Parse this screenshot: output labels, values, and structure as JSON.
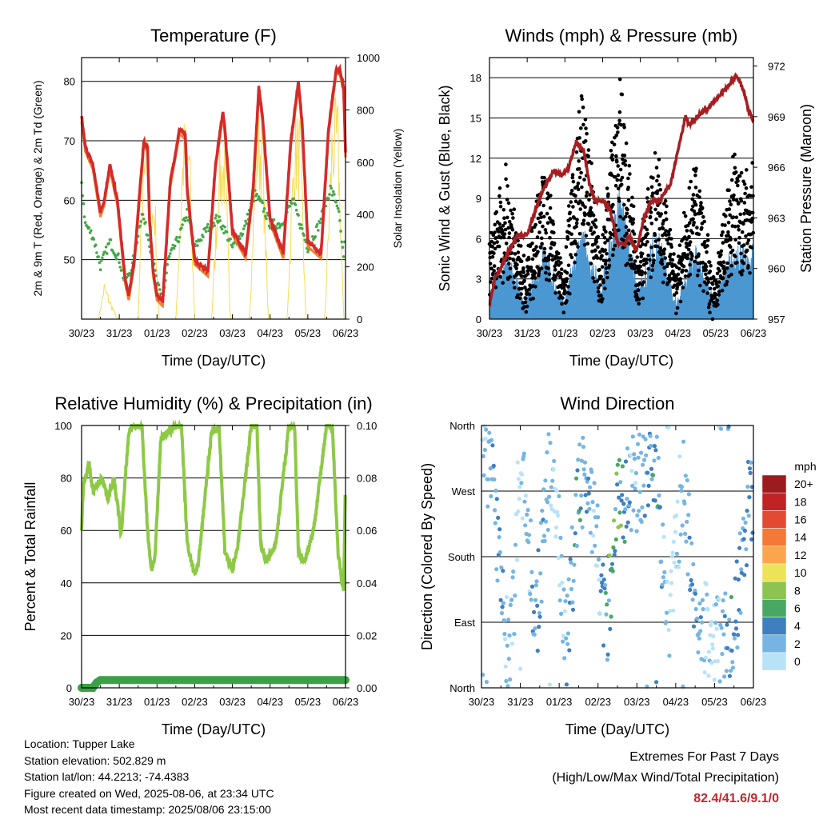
{
  "colors": {
    "red": "#d42a2a",
    "orange": "#f08030",
    "green_td": "#45a84a",
    "yellow": "#f5dc55",
    "black": "#000000",
    "blue": "#4b97d2",
    "maroon": "#a51e22",
    "rh_green": "#8ec946",
    "precip_green": "#3aa146"
  },
  "panels": {
    "temperature": {
      "title": "Temperature (F)",
      "ylabel": "2m & 9m T (Red, Orange) & 2m Td (Green)",
      "ylabel_right": "Solar Insolation (Yellow)",
      "xlabel": "Time (Day/UTC)"
    },
    "winds": {
      "title": "Winds (mph) & Pressure (mb)",
      "ylabel": "Sonic Wind & Gust (Blue, Black)",
      "ylabel_right": "Station Pressure (Maroon)",
      "xlabel": "Time (Day/UTC)"
    },
    "rh": {
      "title": "Relative Humidity (%) & Precipitation (in)",
      "ylabel": "Percent & Total Rainfall",
      "xlabel": "Time (Day/UTC)"
    },
    "direction": {
      "title": "Wind Direction",
      "ylabel": "Direction (Colored By Speed)",
      "xlabel": "Time (Day/UTC)"
    }
  },
  "legend": {
    "unit": "mph",
    "bins": [
      {
        "label": "20+",
        "color": "#9b1b1e"
      },
      {
        "label": "18",
        "color": "#c02226"
      },
      {
        "label": "16",
        "color": "#e34a33"
      },
      {
        "label": "14",
        "color": "#f47836"
      },
      {
        "label": "12",
        "color": "#fba64f"
      },
      {
        "label": "10",
        "color": "#ede35b"
      },
      {
        "label": "8",
        "color": "#8cc351"
      },
      {
        "label": "6",
        "color": "#49a765"
      },
      {
        "label": "4",
        "color": "#3f7fbf"
      },
      {
        "label": "2",
        "color": "#76b5e3"
      },
      {
        "label": "0",
        "color": "#b8e3f7"
      }
    ]
  },
  "info": {
    "location": "Location: Tupper Lake",
    "elevation": "Station elevation: 502.829 m",
    "latlon": "Station lat/lon: 44.2213; -74.4383",
    "created": "Figure created on Wed, 2025-08-06, at 23:34 UTC",
    "recent": "Most recent data timestamp: 2025/08/06 23:15:00"
  },
  "extremes": {
    "title": "Extremes For Past 7 Days",
    "subtitle": "(High/Low/Max Wind/Total Precipitation)",
    "values": "82.4/41.6/9.1/0"
  },
  "chart_data": [
    {
      "type": "line",
      "title": "Temperature (F)",
      "x_ticks": [
        "30/23",
        "31/23",
        "01/23",
        "02/23",
        "03/23",
        "04/23",
        "05/23",
        "06/23"
      ],
      "xlim": [
        0,
        7
      ],
      "ylim": [
        40,
        84
      ],
      "yticks": [
        50,
        60,
        70,
        80
      ],
      "y2lim": [
        0,
        1000
      ],
      "y2ticks": [
        0,
        200,
        400,
        600,
        800,
        1000
      ],
      "series": [
        {
          "name": "2m T",
          "axis": "left",
          "x": [
            0,
            0.1,
            0.3,
            0.5,
            0.6,
            0.75,
            0.95,
            1.15,
            1.25,
            1.4,
            1.65,
            1.75,
            1.8,
            1.9,
            2.0,
            2.15,
            2.35,
            2.6,
            2.75,
            2.8,
            3.0,
            3.35,
            3.55,
            3.75,
            3.8,
            4.0,
            4.35,
            4.55,
            4.7,
            4.8,
            5.0,
            5.35,
            5.55,
            5.75,
            5.85,
            6.0,
            6.35,
            6.55,
            6.75,
            6.85,
            6.95,
            7.0
          ],
          "values": [
            74,
            69,
            66,
            58,
            60,
            66,
            60,
            47,
            44,
            50,
            70,
            69,
            57,
            48,
            44,
            43,
            63,
            72,
            71,
            62,
            50,
            48,
            66,
            75,
            72,
            55,
            51,
            62,
            79,
            74,
            57,
            51,
            70,
            80,
            73,
            53,
            51,
            72,
            82,
            82,
            79,
            68
          ]
        },
        {
          "name": "2m Td",
          "axis": "left",
          "x": [
            0,
            0.1,
            0.3,
            0.5,
            0.75,
            1.0,
            1.15,
            1.35,
            1.6,
            1.8,
            2.0,
            2.15,
            2.3,
            2.6,
            2.8,
            3.0,
            3.3,
            3.6,
            3.8,
            4.0,
            4.3,
            4.6,
            4.8,
            5.0,
            5.3,
            5.6,
            5.8,
            6.0,
            6.3,
            6.6,
            6.8,
            6.95,
            7.0
          ],
          "values": [
            63,
            56,
            54,
            49,
            53,
            50,
            46,
            49,
            58,
            53,
            46,
            43,
            50,
            54,
            58,
            52,
            55,
            57,
            55,
            52,
            55,
            61,
            59,
            56,
            56,
            60,
            56,
            52,
            56,
            62,
            59,
            50,
            55
          ]
        },
        {
          "name": "Solar Insolation",
          "axis": "right",
          "x": [
            0,
            0.45,
            0.6,
            0.75,
            0.95,
            1.5,
            1.7,
            1.8,
            1.95,
            2.05,
            2.5,
            2.7,
            2.85,
            3.0,
            3.45,
            3.65,
            3.8,
            3.95,
            4.45,
            4.65,
            4.8,
            4.95,
            5.45,
            5.65,
            5.8,
            5.95,
            6.45,
            6.65,
            6.8,
            6.95,
            7.0
          ],
          "values": [
            0,
            0,
            150,
            80,
            0,
            0,
            1000,
            500,
            500,
            0,
            0,
            780,
            780,
            0,
            0,
            700,
            720,
            0,
            0,
            830,
            800,
            0,
            0,
            820,
            800,
            0,
            0,
            850,
            850,
            0,
            0
          ]
        }
      ]
    },
    {
      "type": "scatter",
      "title": "Winds (mph) & Pressure (mb)",
      "x_ticks": [
        "30/23",
        "31/23",
        "01/23",
        "02/23",
        "03/23",
        "04/23",
        "05/23",
        "06/23"
      ],
      "xlim": [
        0,
        7
      ],
      "ylim": [
        0,
        19.5
      ],
      "yticks": [
        0,
        3,
        6,
        9,
        12,
        15,
        18
      ],
      "y2lim": [
        957,
        972.5
      ],
      "y2ticks": [
        957,
        960,
        963,
        966,
        969,
        972
      ],
      "series": [
        {
          "name": "Station Pressure",
          "axis": "right",
          "x": [
            0.0,
            0.15,
            0.3,
            0.5,
            0.75,
            1.0,
            1.3,
            1.5,
            1.7,
            1.9,
            2.1,
            2.3,
            2.5,
            2.65,
            2.8,
            3.0,
            3.2,
            3.4,
            3.6,
            3.7,
            3.9,
            4.1,
            4.3,
            4.5,
            4.8,
            5.0,
            5.2,
            5.3,
            5.5,
            5.8,
            6.0,
            6.2,
            6.4,
            6.55,
            6.75,
            6.85,
            6.95,
            7.0
          ],
          "values": [
            957.8,
            959.5,
            960.0,
            961.0,
            962.0,
            962.0,
            964.0,
            965.0,
            965.8,
            965.5,
            966.0,
            967.5,
            967.0,
            965.0,
            964.0,
            964.0,
            963.5,
            961.5,
            961.4,
            962.0,
            961.0,
            963.0,
            964.0,
            964.0,
            965.0,
            967.0,
            969.0,
            968.5,
            969.0,
            969.5,
            970.0,
            970.5,
            971.0,
            971.5,
            970.5,
            969.5,
            969.0,
            968.8
          ]
        },
        {
          "name": "Wind Daily Peak",
          "axis": "left",
          "x": [
            0.05,
            0.45,
            0.95,
            1.45,
            1.95,
            2.45,
            2.95,
            3.45,
            3.95,
            4.45,
            4.95,
            5.45,
            5.95,
            6.45,
            6.95
          ],
          "values": [
            1.5,
            4,
            0.5,
            4.5,
            0.5,
            5.5,
            1.5,
            8.5,
            1.5,
            5.5,
            0.5,
            4.5,
            0.5,
            4.5,
            4.0
          ]
        },
        {
          "name": "Gust Daily Peak",
          "axis": "left",
          "x": [
            0.05,
            0.45,
            0.95,
            1.45,
            1.95,
            2.45,
            2.95,
            3.45,
            3.95,
            4.45,
            4.95,
            5.45,
            5.95,
            6.45,
            6.95
          ],
          "values": [
            6,
            10,
            3,
            11,
            3,
            16,
            4,
            17,
            4,
            12,
            3,
            11,
            2,
            11,
            10
          ]
        }
      ]
    },
    {
      "type": "line",
      "title": "Relative Humidity (%) & Precipitation (in)",
      "x_ticks": [
        "30/23",
        "31/23",
        "01/23",
        "02/23",
        "03/23",
        "04/23",
        "05/23",
        "06/23"
      ],
      "xlim": [
        0,
        7
      ],
      "ylim": [
        0,
        100
      ],
      "yticks": [
        0,
        20,
        40,
        60,
        80,
        100
      ],
      "y2lim": [
        0,
        0.1
      ],
      "y2ticks": [
        "0.00",
        "0.02",
        "0.04",
        "0.06",
        "0.08",
        "0.10"
      ],
      "series": [
        {
          "name": "Relative Humidity",
          "axis": "left",
          "x": [
            0,
            0.05,
            0.2,
            0.3,
            0.45,
            0.55,
            0.7,
            0.85,
            0.95,
            1.05,
            1.15,
            1.25,
            1.35,
            1.5,
            1.6,
            1.75,
            1.85,
            1.95,
            2.1,
            2.5,
            2.65,
            2.8,
            3.0,
            3.1,
            3.45,
            3.65,
            3.8,
            4.0,
            4.15,
            4.5,
            4.65,
            4.75,
            4.9,
            5.15,
            5.5,
            5.65,
            5.75,
            5.9,
            6.15,
            6.5,
            6.65,
            6.8,
            6.9,
            6.95,
            7.0
          ],
          "values": [
            61,
            78,
            85,
            75,
            78,
            80,
            72,
            80,
            70,
            58,
            78,
            97,
            100,
            100,
            100,
            60,
            45,
            50,
            95,
            100,
            100,
            55,
            43,
            48,
            98,
            99,
            52,
            45,
            55,
            100,
            100,
            55,
            48,
            55,
            100,
            100,
            52,
            48,
            60,
            100,
            100,
            52,
            40,
            38,
            80
          ]
        },
        {
          "name": "Total Rainfall",
          "axis": "right",
          "x": [
            0,
            0.05,
            0.3,
            0.4,
            0.5,
            1.0,
            2.0,
            3.0,
            4.0,
            5.0,
            6.0,
            7.0
          ],
          "values": [
            0,
            0,
            0,
            0.002,
            0.003,
            0.003,
            0.003,
            0.003,
            0.003,
            0.003,
            0.003,
            0.003
          ]
        }
      ]
    },
    {
      "type": "scatter",
      "title": "Wind Direction",
      "x_ticks": [
        "30/23",
        "31/23",
        "01/23",
        "02/23",
        "03/23",
        "04/23",
        "05/23",
        "06/23"
      ],
      "xlim": [
        0,
        7
      ],
      "y_ticks": [
        "North",
        "West",
        "South",
        "East",
        "North"
      ],
      "ylim": [
        0,
        360
      ],
      "series": [
        {
          "name": "Wind Direction",
          "x": [
            0.1,
            0.3,
            0.6,
            0.8,
            1.0,
            1.4,
            1.8,
            2.2,
            2.5,
            2.8,
            3.2,
            3.5,
            3.8,
            4.2,
            4.5,
            4.8,
            5.2,
            5.5,
            5.8,
            6.2,
            6.5,
            6.9
          ],
          "values": [
            320,
            300,
            60,
            80,
            330,
            90,
            320,
            60,
            270,
            280,
            80,
            260,
            270,
            300,
            320,
            60,
            310,
            70,
            80,
            60,
            70,
            260
          ]
        }
      ]
    }
  ]
}
